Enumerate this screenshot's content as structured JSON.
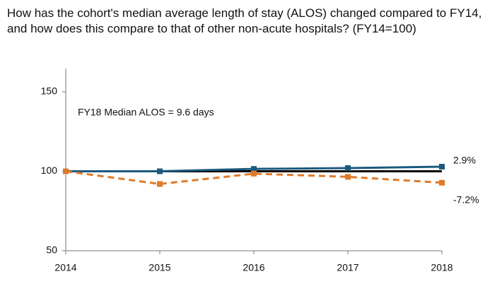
{
  "chart_data": {
    "type": "line",
    "title": "How has the cohort's median average length of stay (ALOS) changed compared to FY14, and how does this compare to that of other non-acute hospitals? (FY14=100)",
    "x": [
      2014,
      2015,
      2016,
      2017,
      2018
    ],
    "xlim": [
      2014,
      2018
    ],
    "xticks": [
      2014,
      2015,
      2016,
      2017,
      2018
    ],
    "ylim": [
      50,
      150
    ],
    "yticks": [
      50,
      100,
      150
    ],
    "reference_line": 100,
    "series": [
      {
        "color": "#1b5a7e",
        "dash": false,
        "values": [
          100,
          100,
          101.5,
          102,
          102.9
        ]
      },
      {
        "color": "#e07a28",
        "dash": true,
        "values": [
          100,
          92,
          98.5,
          96.5,
          92.8
        ]
      }
    ],
    "annotations": [
      "FY18 Median ALOS = 9.6 days",
      "2.9%",
      "-7.2%"
    ]
  }
}
